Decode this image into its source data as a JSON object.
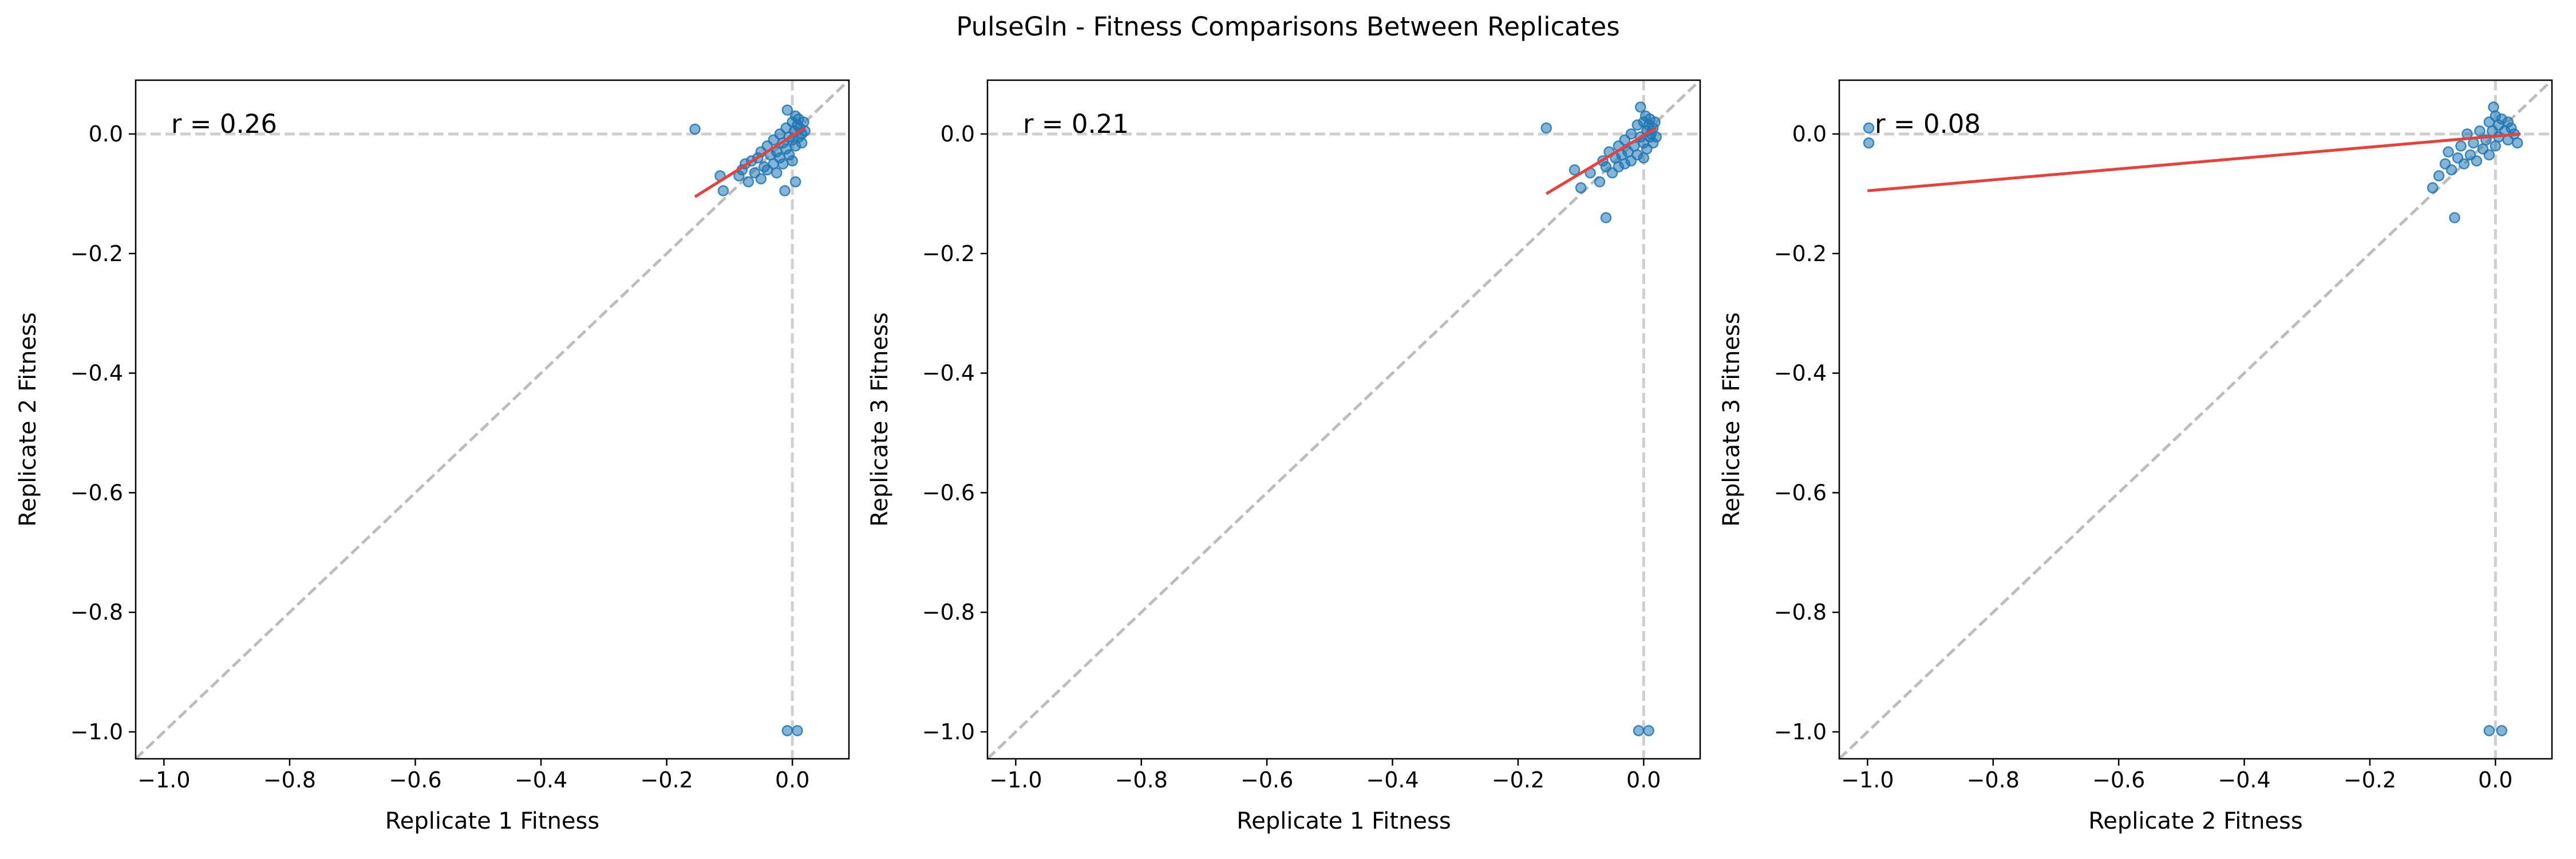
{
  "figure": {
    "suptitle": "PulseGln - Fitness Comparisons Between Replicates"
  },
  "chart_data": [
    {
      "type": "scatter",
      "title": "",
      "xlabel": "Replicate 1 Fitness",
      "ylabel": "Replicate 2 Fitness",
      "annotation": "r = 0.26",
      "xlim": [
        -1.045,
        0.09
      ],
      "ylim": [
        -1.045,
        0.09
      ],
      "xticks": [
        -1.0,
        -0.8,
        -0.6,
        -0.4,
        -0.2,
        0.0
      ],
      "yticks": [
        -1.0,
        -0.8,
        -0.6,
        -0.4,
        -0.2,
        0.0
      ],
      "xtick_labels": [
        "−1.0",
        "−0.8",
        "−0.6",
        "−0.4",
        "−0.2",
        "0.0"
      ],
      "ytick_labels": [
        "−1.0",
        "−0.8",
        "−0.6",
        "−0.4",
        "−0.2",
        "0.0"
      ],
      "reference_lines": {
        "diagonal": "y = x",
        "vertical": 0.0,
        "horizontal": 0.0
      },
      "fit_line": [
        [
          -0.155,
          -0.105
        ],
        [
          0.02,
          0.01
        ]
      ],
      "marker_color": "#1f77b4",
      "fit_color": "#e8413c",
      "points": [
        [
          -0.155,
          0.008
        ],
        [
          -0.115,
          -0.07
        ],
        [
          -0.11,
          -0.095
        ],
        [
          -0.085,
          -0.07
        ],
        [
          -0.08,
          -0.06
        ],
        [
          -0.075,
          -0.05
        ],
        [
          -0.07,
          -0.08
        ],
        [
          -0.065,
          -0.045
        ],
        [
          -0.06,
          -0.065
        ],
        [
          -0.055,
          -0.04
        ],
        [
          -0.05,
          -0.075
        ],
        [
          -0.05,
          -0.03
        ],
        [
          -0.045,
          -0.055
        ],
        [
          -0.04,
          -0.02
        ],
        [
          -0.04,
          -0.06
        ],
        [
          -0.035,
          -0.035
        ],
        [
          -0.03,
          -0.05
        ],
        [
          -0.03,
          -0.01
        ],
        [
          -0.025,
          -0.03
        ],
        [
          -0.025,
          -0.065
        ],
        [
          -0.02,
          0.0
        ],
        [
          -0.02,
          -0.04
        ],
        [
          -0.015,
          -0.015
        ],
        [
          -0.015,
          -0.05
        ],
        [
          -0.01,
          0.01
        ],
        [
          -0.01,
          -0.025
        ],
        [
          -0.008,
          0.04
        ],
        [
          -0.005,
          -0.005
        ],
        [
          -0.005,
          -0.035
        ],
        [
          0.0,
          0.02
        ],
        [
          0.0,
          -0.01
        ],
        [
          0.0,
          -0.045
        ],
        [
          0.003,
          0.005
        ],
        [
          0.005,
          0.03
        ],
        [
          0.005,
          -0.02
        ],
        [
          0.008,
          0.015
        ],
        [
          0.01,
          -0.005
        ],
        [
          0.01,
          0.025
        ],
        [
          0.012,
          0.01
        ],
        [
          0.015,
          0.0
        ],
        [
          0.015,
          -0.015
        ],
        [
          0.018,
          0.02
        ],
        [
          0.02,
          0.005
        ],
        [
          0.005,
          -0.08
        ],
        [
          -0.012,
          -0.095
        ],
        [
          -0.008,
          -0.998
        ],
        [
          0.008,
          -0.998
        ]
      ]
    },
    {
      "type": "scatter",
      "title": "",
      "xlabel": "Replicate 1 Fitness",
      "ylabel": "Replicate 3 Fitness",
      "annotation": "r = 0.21",
      "xlim": [
        -1.045,
        0.09
      ],
      "ylim": [
        -1.045,
        0.09
      ],
      "xticks": [
        -1.0,
        -0.8,
        -0.6,
        -0.4,
        -0.2,
        0.0
      ],
      "yticks": [
        -1.0,
        -0.8,
        -0.6,
        -0.4,
        -0.2,
        0.0
      ],
      "xtick_labels": [
        "−1.0",
        "−0.8",
        "−0.6",
        "−0.4",
        "−0.2",
        "0.0"
      ],
      "ytick_labels": [
        "−1.0",
        "−0.8",
        "−0.6",
        "−0.4",
        "−0.2",
        "0.0"
      ],
      "reference_lines": {
        "diagonal": "y = x",
        "vertical": 0.0,
        "horizontal": 0.0
      },
      "fit_line": [
        [
          -0.155,
          -0.1
        ],
        [
          0.02,
          0.01
        ]
      ],
      "marker_color": "#1f77b4",
      "fit_color": "#e8413c",
      "points": [
        [
          -0.155,
          0.01
        ],
        [
          -0.11,
          -0.06
        ],
        [
          -0.1,
          -0.09
        ],
        [
          -0.085,
          -0.065
        ],
        [
          -0.07,
          -0.08
        ],
        [
          -0.065,
          -0.045
        ],
        [
          -0.06,
          -0.14
        ],
        [
          -0.06,
          -0.055
        ],
        [
          -0.055,
          -0.03
        ],
        [
          -0.05,
          -0.065
        ],
        [
          -0.045,
          -0.04
        ],
        [
          -0.04,
          -0.02
        ],
        [
          -0.04,
          -0.055
        ],
        [
          -0.035,
          -0.035
        ],
        [
          -0.03,
          -0.05
        ],
        [
          -0.03,
          -0.01
        ],
        [
          -0.025,
          -0.03
        ],
        [
          -0.02,
          0.0
        ],
        [
          -0.02,
          -0.045
        ],
        [
          -0.015,
          -0.02
        ],
        [
          -0.01,
          0.015
        ],
        [
          -0.01,
          -0.035
        ],
        [
          -0.005,
          -0.005
        ],
        [
          -0.005,
          0.045
        ],
        [
          0.0,
          0.02
        ],
        [
          0.0,
          -0.015
        ],
        [
          0.0,
          -0.04
        ],
        [
          0.003,
          0.03
        ],
        [
          0.005,
          0.005
        ],
        [
          0.005,
          -0.025
        ],
        [
          0.008,
          0.015
        ],
        [
          0.01,
          -0.005
        ],
        [
          0.01,
          0.025
        ],
        [
          0.012,
          0.0
        ],
        [
          0.015,
          -0.015
        ],
        [
          0.015,
          0.01
        ],
        [
          0.018,
          0.02
        ],
        [
          0.02,
          -0.005
        ],
        [
          -0.008,
          -0.998
        ],
        [
          0.008,
          -0.998
        ]
      ]
    },
    {
      "type": "scatter",
      "title": "",
      "xlabel": "Replicate 2 Fitness",
      "ylabel": "Replicate 3 Fitness",
      "annotation": "r = 0.08",
      "xlim": [
        -1.045,
        0.09
      ],
      "ylim": [
        -1.045,
        0.09
      ],
      "xticks": [
        -1.0,
        -0.8,
        -0.6,
        -0.4,
        -0.2,
        0.0
      ],
      "yticks": [
        -1.0,
        -0.8,
        -0.6,
        -0.4,
        -0.2,
        0.0
      ],
      "xtick_labels": [
        "−1.0",
        "−0.8",
        "−0.6",
        "−0.4",
        "−0.2",
        "0.0"
      ],
      "ytick_labels": [
        "−1.0",
        "−0.8",
        "−0.6",
        "−0.4",
        "−0.2",
        "0.0"
      ],
      "reference_lines": {
        "diagonal": "y = x",
        "vertical": 0.0,
        "horizontal": 0.0
      },
      "fit_line": [
        [
          -1.0,
          -0.095
        ],
        [
          0.04,
          0.0
        ]
      ],
      "marker_color": "#1f77b4",
      "fit_color": "#e8413c",
      "points": [
        [
          -0.998,
          0.01
        ],
        [
          -0.998,
          -0.015
        ],
        [
          -0.1,
          -0.09
        ],
        [
          -0.09,
          -0.07
        ],
        [
          -0.08,
          -0.05
        ],
        [
          -0.075,
          -0.03
        ],
        [
          -0.07,
          -0.06
        ],
        [
          -0.065,
          -0.14
        ],
        [
          -0.06,
          -0.04
        ],
        [
          -0.055,
          -0.02
        ],
        [
          -0.05,
          -0.05
        ],
        [
          -0.045,
          0.0
        ],
        [
          -0.04,
          -0.035
        ],
        [
          -0.035,
          -0.015
        ],
        [
          -0.03,
          -0.045
        ],
        [
          -0.025,
          0.005
        ],
        [
          -0.02,
          -0.025
        ],
        [
          -0.015,
          -0.01
        ],
        [
          -0.01,
          0.02
        ],
        [
          -0.01,
          -0.035
        ],
        [
          -0.005,
          0.005
        ],
        [
          -0.003,
          0.045
        ],
        [
          0.0,
          0.03
        ],
        [
          0.0,
          -0.02
        ],
        [
          0.005,
          0.015
        ],
        [
          0.005,
          -0.005
        ],
        [
          0.01,
          0.025
        ],
        [
          0.015,
          0.005
        ],
        [
          0.02,
          -0.01
        ],
        [
          0.02,
          0.02
        ],
        [
          0.025,
          0.01
        ],
        [
          0.03,
          0.0
        ],
        [
          0.035,
          -0.015
        ],
        [
          -0.01,
          -0.998
        ],
        [
          0.01,
          -0.998
        ]
      ]
    }
  ]
}
